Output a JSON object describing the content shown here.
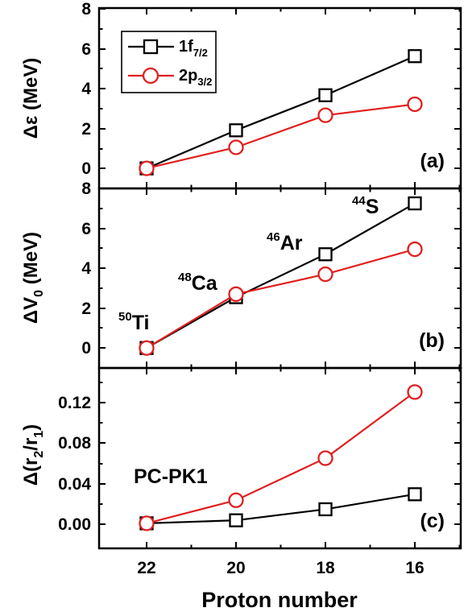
{
  "chart_data": {
    "type": "line",
    "x": [
      22,
      20,
      18,
      16
    ],
    "xlabel": "Proton number",
    "legend": {
      "placement": "top-left",
      "entries": [
        {
          "base": "1f",
          "sub": "7/2",
          "color": "#000000",
          "marker": "square"
        },
        {
          "base": "2p",
          "sub": "3/2",
          "color": "#e02020",
          "marker": "circle"
        }
      ]
    },
    "panels": [
      {
        "panel_label": "(a)",
        "ylabel": "Δε (MeV)",
        "ylim": [
          -1.0,
          8.0
        ],
        "yticks": [
          "0",
          "2",
          "4",
          "6",
          "8"
        ],
        "series": [
          {
            "values": [
              0.0,
              1.9,
              3.65,
              5.6
            ]
          },
          {
            "values": [
              0.0,
              1.05,
              2.65,
              3.2
            ]
          }
        ]
      },
      {
        "panel_label": "(b)",
        "ylabel_main": "ΔV",
        "ylabel_sub": "0",
        "ylabel_rest": " (MeV)",
        "ylim": [
          -1.0,
          8.0
        ],
        "yticks": [
          "0",
          "2",
          "4",
          "6",
          "8"
        ],
        "series": [
          {
            "values": [
              0.0,
              2.55,
              4.7,
              7.25
            ]
          },
          {
            "values": [
              0.0,
              2.7,
              3.7,
              4.95
            ]
          }
        ],
        "annotations": [
          {
            "mass": "50",
            "symbol": "Ti"
          },
          {
            "mass": "48",
            "symbol": "Ca"
          },
          {
            "mass": "46",
            "symbol": "Ar"
          },
          {
            "mass": "44",
            "symbol": "S"
          }
        ]
      },
      {
        "panel_label": "(c)",
        "ylabel_parts": [
          "Δ(r",
          "2",
          "/r",
          "1",
          ")"
        ],
        "ylim": [
          -0.025,
          0.155
        ],
        "yticks": [
          "0.00",
          "0.04",
          "0.08",
          "0.12"
        ],
        "series": [
          {
            "values": [
              0.0,
              0.003,
              0.014,
              0.029
            ]
          },
          {
            "values": [
              0.0,
              0.023,
              0.065,
              0.131
            ]
          }
        ],
        "text_label": "PC-PK1"
      }
    ]
  }
}
